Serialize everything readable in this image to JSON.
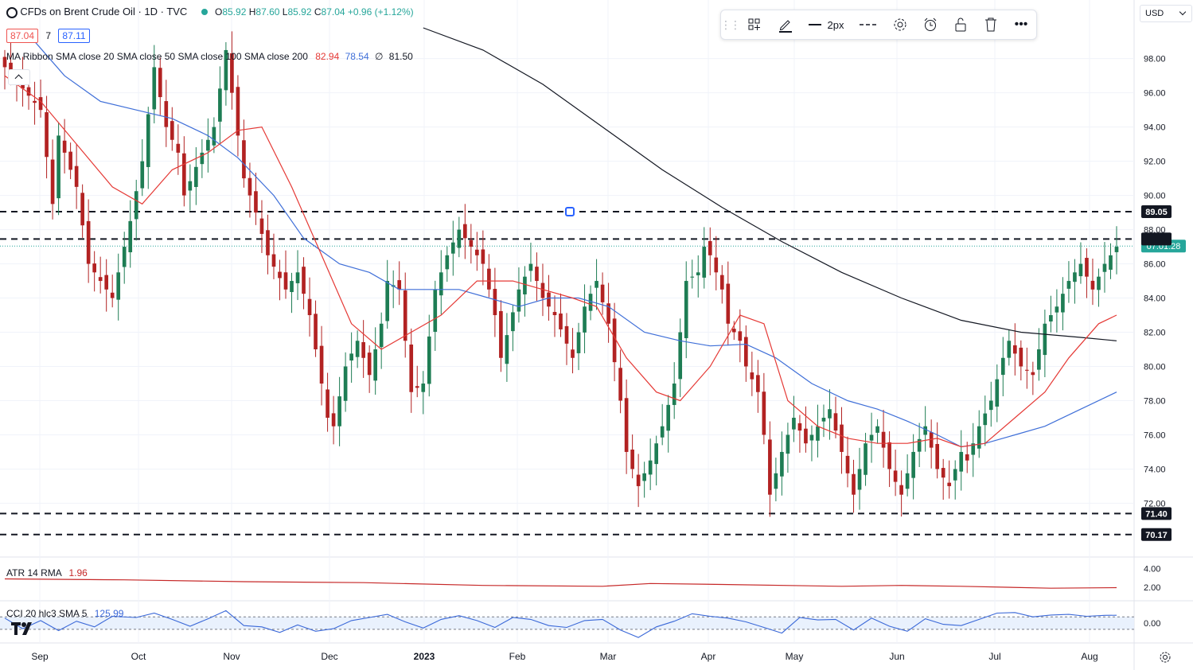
{
  "header": {
    "symbol_title": "CFDs on Brent Crude Oil · 1D · TVC",
    "ohlc": {
      "o_label": "O",
      "o": "85.92",
      "h_label": "H",
      "h": "87.60",
      "l_label": "L",
      "l": "85.92",
      "c_label": "C",
      "c": "87.04",
      "change": "+0.96 (+1.12%)"
    },
    "bid": "87.04",
    "spread": "7",
    "ask": "87.11",
    "ma_ribbon": {
      "label": "MA Ribbon SMA close 20 SMA close 50 SMA close 100 SMA close 200",
      "v1": "82.94",
      "v2": "78.54",
      "v3": "∅",
      "v4": "81.50"
    },
    "currency": "USD"
  },
  "toolbar": {
    "width_label": "2px",
    "icons": [
      "drag-handle-icon",
      "template-icon",
      "pencil-icon",
      "line-style-icon",
      "dash-style-icon",
      "gear-icon",
      "alarm-clock-icon",
      "lock-icon",
      "trash-icon",
      "more-icon"
    ]
  },
  "colors": {
    "up": "#26a69a",
    "down": "#ef5350",
    "candle_up": "#1e7d54",
    "candle_down": "#b22222",
    "sma20": "#e53935",
    "sma50": "#3f6fd8",
    "sma200": "#131722",
    "atr": "#c62828",
    "cci": "#3a68d8"
  },
  "chart_data": {
    "type": "candlestick",
    "x_axis_labels": [
      "Sep",
      "Oct",
      "Nov",
      "Dec",
      "2023",
      "Feb",
      "Mar",
      "Apr",
      "May",
      "Jun",
      "Jul",
      "Aug"
    ],
    "y_ticks": [
      "98.00",
      "96.00",
      "94.00",
      "92.00",
      "90.00",
      "88.00",
      "86.00",
      "84.00",
      "82.00",
      "80.00",
      "78.00",
      "76.00",
      "74.00",
      "72.00"
    ],
    "ylim": [
      69.6,
      99.8
    ],
    "horizontal_levels": [
      {
        "value": 89.05,
        "label": "89.05"
      },
      {
        "value": 87.45,
        "label": "87.45"
      },
      {
        "value": 71.4,
        "label": "71.40"
      },
      {
        "value": 70.17,
        "label": "70.17"
      }
    ],
    "last_price_label": "87.04",
    "countdown_label": "07:01:28",
    "atr_panel": {
      "label": "ATR 14 RMA",
      "value": "1.96",
      "y_ticks": [
        "4.00",
        "2.00"
      ],
      "ylim": [
        0.8,
        5.0
      ]
    },
    "cci_panel": {
      "label": "CCI 20 hlc3 SMA 5",
      "value": "125.99",
      "y_ticks": [
        "0.00"
      ],
      "band": [
        -100,
        100
      ],
      "ylim": [
        -280,
        320
      ]
    },
    "close_path": [
      [
        0,
        97.5
      ],
      [
        6,
        95.0
      ],
      [
        8,
        89.5
      ],
      [
        9,
        93.5
      ],
      [
        12,
        90.5
      ],
      [
        14,
        86.0
      ],
      [
        15,
        85.5
      ],
      [
        18,
        84.0
      ],
      [
        21,
        88.5
      ],
      [
        23,
        92.0
      ],
      [
        25,
        97.5
      ],
      [
        27,
        94.0
      ],
      [
        29,
        92.5
      ],
      [
        30,
        90.0
      ],
      [
        33,
        92.5
      ],
      [
        35,
        94.0
      ],
      [
        37,
        98.5
      ],
      [
        39,
        93.5
      ],
      [
        40,
        91.0
      ],
      [
        42,
        89.0
      ],
      [
        44,
        86.5
      ],
      [
        47,
        84.5
      ],
      [
        49,
        85.5
      ],
      [
        51,
        83.0
      ],
      [
        53,
        79.0
      ],
      [
        54,
        77.0
      ],
      [
        55,
        76.5
      ],
      [
        57,
        80.0
      ],
      [
        59,
        81.5
      ],
      [
        61,
        79.5
      ],
      [
        63,
        82.5
      ],
      [
        64,
        85.0
      ],
      [
        66,
        84.5
      ],
      [
        68,
        78.5
      ],
      [
        70,
        79.0
      ],
      [
        72,
        84.5
      ],
      [
        74,
        86.5
      ],
      [
        76,
        88.0
      ],
      [
        78,
        87.0
      ],
      [
        80,
        86.0
      ],
      [
        82,
        83.0
      ],
      [
        83,
        80.5
      ],
      [
        86,
        84.5
      ],
      [
        88,
        86.0
      ],
      [
        90,
        84.0
      ],
      [
        92,
        83.0
      ],
      [
        95,
        80.5
      ],
      [
        97,
        83.5
      ],
      [
        99,
        85.0
      ],
      [
        101,
        82.5
      ],
      [
        103,
        78.0
      ],
      [
        104,
        75.0
      ],
      [
        106,
        73.0
      ],
      [
        108,
        74.5
      ],
      [
        110,
        76.5
      ],
      [
        112,
        79.0
      ],
      [
        114,
        85.0
      ],
      [
        116,
        85.5
      ],
      [
        117,
        87.0
      ],
      [
        118,
        86.5
      ],
      [
        120,
        84.5
      ],
      [
        121,
        82.5
      ],
      [
        123,
        81.5
      ],
      [
        124,
        80.0
      ],
      [
        126,
        78.5
      ],
      [
        127,
        76.0
      ],
      [
        128,
        72.5
      ],
      [
        130,
        75.0
      ],
      [
        132,
        77.0
      ],
      [
        134,
        75.5
      ],
      [
        136,
        76.5
      ],
      [
        138,
        77.5
      ],
      [
        140,
        75.0
      ],
      [
        142,
        72.5
      ],
      [
        144,
        75.5
      ],
      [
        146,
        76.5
      ],
      [
        148,
        74.0
      ],
      [
        150,
        72.5
      ],
      [
        152,
        75.0
      ],
      [
        154,
        76.5
      ],
      [
        156,
        74.0
      ],
      [
        158,
        73.0
      ],
      [
        160,
        75.0
      ],
      [
        161,
        74.5
      ],
      [
        163,
        76.5
      ],
      [
        165,
        78.0
      ],
      [
        167,
        80.5
      ],
      [
        168,
        81.5
      ],
      [
        170,
        80.0
      ],
      [
        172,
        79.5
      ],
      [
        174,
        82.5
      ],
      [
        176,
        83.5
      ],
      [
        178,
        85.0
      ],
      [
        180,
        86.0
      ],
      [
        182,
        84.5
      ],
      [
        184,
        86.0
      ],
      [
        186,
        87.0
      ]
    ],
    "sma20_path": [
      [
        0,
        97.0
      ],
      [
        6,
        95.5
      ],
      [
        12,
        93.0
      ],
      [
        18,
        90.5
      ],
      [
        23,
        89.5
      ],
      [
        28,
        91.5
      ],
      [
        34,
        92.5
      ],
      [
        39,
        93.8
      ],
      [
        43,
        94.0
      ],
      [
        48,
        90.5
      ],
      [
        53,
        86.5
      ],
      [
        58,
        82.5
      ],
      [
        63,
        81.0
      ],
      [
        68,
        82.0
      ],
      [
        73,
        83.0
      ],
      [
        79,
        85.0
      ],
      [
        85,
        85.0
      ],
      [
        90,
        84.5
      ],
      [
        95,
        84.0
      ],
      [
        99,
        83.5
      ],
      [
        104,
        80.5
      ],
      [
        109,
        78.5
      ],
      [
        113,
        78.0
      ],
      [
        118,
        80.0
      ],
      [
        123,
        83.0
      ],
      [
        127,
        82.5
      ],
      [
        131,
        78.0
      ],
      [
        136,
        76.5
      ],
      [
        141,
        75.8
      ],
      [
        146,
        75.5
      ],
      [
        151,
        75.5
      ],
      [
        156,
        75.8
      ],
      [
        160,
        75.3
      ],
      [
        164,
        75.5
      ],
      [
        169,
        77.0
      ],
      [
        174,
        78.5
      ],
      [
        178,
        80.5
      ],
      [
        183,
        82.5
      ],
      [
        186,
        83.0
      ]
    ],
    "sma50_path": [
      [
        5,
        99.0
      ],
      [
        10,
        97.0
      ],
      [
        16,
        95.5
      ],
      [
        22,
        95.0
      ],
      [
        28,
        94.5
      ],
      [
        34,
        93.5
      ],
      [
        39,
        92.2
      ],
      [
        45,
        90.0
      ],
      [
        50,
        87.5
      ],
      [
        56,
        86.0
      ],
      [
        61,
        85.5
      ],
      [
        66,
        84.5
      ],
      [
        71,
        84.5
      ],
      [
        76,
        84.5
      ],
      [
        81,
        84.0
      ],
      [
        86,
        83.5
      ],
      [
        91,
        84.0
      ],
      [
        96,
        84.0
      ],
      [
        101,
        83.5
      ],
      [
        107,
        82.0
      ],
      [
        113,
        81.5
      ],
      [
        118,
        81.2
      ],
      [
        124,
        81.3
      ],
      [
        129,
        80.5
      ],
      [
        135,
        79.0
      ],
      [
        141,
        78.0
      ],
      [
        146,
        77.5
      ],
      [
        151,
        76.8
      ],
      [
        156,
        76.0
      ],
      [
        160,
        75.3
      ],
      [
        164,
        75.5
      ],
      [
        169,
        76.0
      ],
      [
        174,
        76.5
      ],
      [
        180,
        77.5
      ],
      [
        186,
        78.5
      ]
    ],
    "sma200_path": [
      [
        70,
        99.8
      ],
      [
        80,
        98.5
      ],
      [
        90,
        96.5
      ],
      [
        100,
        94.0
      ],
      [
        110,
        91.5
      ],
      [
        120,
        89.3
      ],
      [
        130,
        87.3
      ],
      [
        140,
        85.5
      ],
      [
        150,
        84.0
      ],
      [
        160,
        82.7
      ],
      [
        170,
        82.0
      ],
      [
        180,
        81.7
      ],
      [
        186,
        81.5
      ]
    ],
    "atr_path": [
      [
        0,
        2.9
      ],
      [
        20,
        2.8
      ],
      [
        40,
        2.6
      ],
      [
        60,
        2.5
      ],
      [
        80,
        2.2
      ],
      [
        100,
        2.1
      ],
      [
        108,
        2.4
      ],
      [
        120,
        2.3
      ],
      [
        140,
        2.1
      ],
      [
        150,
        2.2
      ],
      [
        160,
        2.1
      ],
      [
        175,
        1.9
      ],
      [
        186,
        1.96
      ]
    ],
    "cci_path": [
      [
        0,
        80
      ],
      [
        3,
        -90
      ],
      [
        6,
        40
      ],
      [
        9,
        -120
      ],
      [
        12,
        30
      ],
      [
        15,
        -60
      ],
      [
        18,
        110
      ],
      [
        22,
        90
      ],
      [
        25,
        160
      ],
      [
        28,
        60
      ],
      [
        31,
        -50
      ],
      [
        34,
        70
      ],
      [
        37,
        200
      ],
      [
        40,
        -40
      ],
      [
        43,
        -60
      ],
      [
        46,
        -150
      ],
      [
        49,
        -30
      ],
      [
        52,
        -130
      ],
      [
        55,
        -90
      ],
      [
        58,
        40
      ],
      [
        61,
        90
      ],
      [
        64,
        140
      ],
      [
        67,
        20
      ],
      [
        70,
        -80
      ],
      [
        73,
        60
      ],
      [
        76,
        120
      ],
      [
        79,
        40
      ],
      [
        82,
        -70
      ],
      [
        85,
        90
      ],
      [
        88,
        60
      ],
      [
        91,
        -40
      ],
      [
        94,
        -70
      ],
      [
        97,
        40
      ],
      [
        100,
        60
      ],
      [
        103,
        -110
      ],
      [
        106,
        -230
      ],
      [
        109,
        -60
      ],
      [
        112,
        30
      ],
      [
        115,
        150
      ],
      [
        118,
        110
      ],
      [
        121,
        80
      ],
      [
        124,
        20
      ],
      [
        127,
        -70
      ],
      [
        130,
        -160
      ],
      [
        133,
        90
      ],
      [
        136,
        50
      ],
      [
        139,
        60
      ],
      [
        142,
        -110
      ],
      [
        145,
        80
      ],
      [
        148,
        -50
      ],
      [
        151,
        -130
      ],
      [
        154,
        70
      ],
      [
        157,
        -20
      ],
      [
        160,
        -40
      ],
      [
        163,
        60
      ],
      [
        166,
        160
      ],
      [
        169,
        170
      ],
      [
        172,
        100
      ],
      [
        175,
        130
      ],
      [
        178,
        140
      ],
      [
        181,
        110
      ],
      [
        184,
        125
      ],
      [
        186,
        126
      ]
    ]
  }
}
